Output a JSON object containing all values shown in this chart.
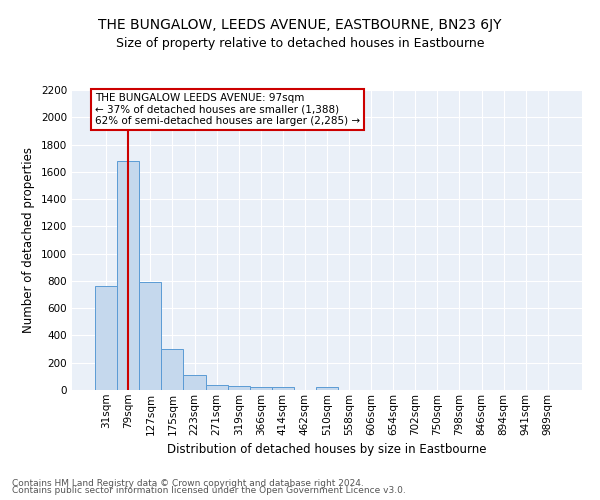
{
  "title": "THE BUNGALOW, LEEDS AVENUE, EASTBOURNE, BN23 6JY",
  "subtitle": "Size of property relative to detached houses in Eastbourne",
  "xlabel": "Distribution of detached houses by size in Eastbourne",
  "ylabel": "Number of detached properties",
  "bin_labels": [
    "31sqm",
    "79sqm",
    "127sqm",
    "175sqm",
    "223sqm",
    "271sqm",
    "319sqm",
    "366sqm",
    "414sqm",
    "462sqm",
    "510sqm",
    "558sqm",
    "606sqm",
    "654sqm",
    "702sqm",
    "750sqm",
    "798sqm",
    "846sqm",
    "894sqm",
    "941sqm",
    "989sqm"
  ],
  "bar_values": [
    760,
    1680,
    790,
    300,
    110,
    40,
    28,
    22,
    20,
    0,
    22,
    0,
    0,
    0,
    0,
    0,
    0,
    0,
    0,
    0,
    0
  ],
  "bar_color": "#c5d8ed",
  "bar_edge_color": "#5b9bd5",
  "vline_x": 1,
  "vline_color": "#cc0000",
  "annotation_text": "THE BUNGALOW LEEDS AVENUE: 97sqm\n← 37% of detached houses are smaller (1,388)\n62% of semi-detached houses are larger (2,285) →",
  "annotation_box_color": "#ffffff",
  "annotation_box_edge": "#cc0000",
  "ylim": [
    0,
    2200
  ],
  "yticks": [
    0,
    200,
    400,
    600,
    800,
    1000,
    1200,
    1400,
    1600,
    1800,
    2000,
    2200
  ],
  "background_color": "#eaf0f8",
  "footer_line1": "Contains HM Land Registry data © Crown copyright and database right 2024.",
  "footer_line2": "Contains public sector information licensed under the Open Government Licence v3.0.",
  "title_fontsize": 10,
  "subtitle_fontsize": 9,
  "xlabel_fontsize": 8.5,
  "ylabel_fontsize": 8.5,
  "tick_fontsize": 7.5,
  "annotation_fontsize": 7.5,
  "footer_fontsize": 6.5
}
